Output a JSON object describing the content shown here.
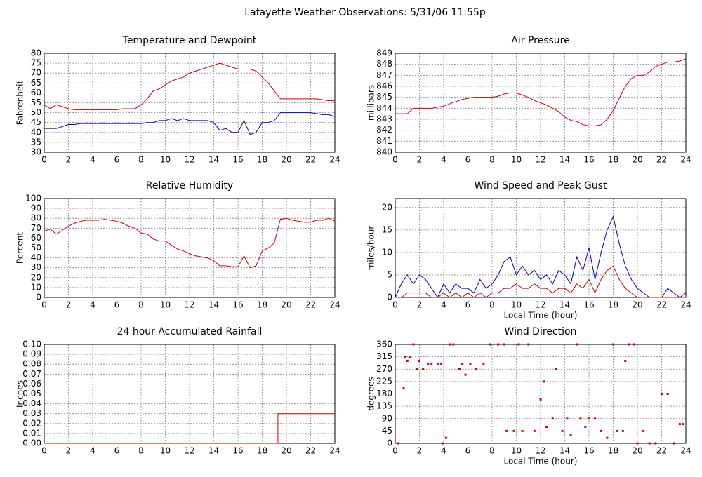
{
  "title": "Lafayette Weather Observations: 5/31/06 11:55p",
  "chart_data": [
    {
      "type": "line",
      "title": "Temperature and Dewpoint",
      "y_label": "Fahrenheit",
      "x": [
        0,
        0.5,
        1,
        1.5,
        2,
        2.5,
        3,
        3.5,
        4,
        4.5,
        5,
        5.5,
        6,
        6.5,
        7,
        7.5,
        8,
        8.5,
        9,
        9.5,
        10,
        10.5,
        11,
        11.5,
        12,
        12.5,
        13,
        13.5,
        14,
        14.5,
        15,
        15.5,
        16,
        16.5,
        17,
        17.5,
        18,
        18.5,
        19,
        19.5,
        20,
        20.5,
        21,
        21.5,
        22,
        22.5,
        23,
        23.5,
        24
      ],
      "series": [
        {
          "color": "#d00000",
          "values": [
            54,
            52,
            54,
            53,
            52,
            51.5,
            51.5,
            51.5,
            51.5,
            51.5,
            51.5,
            51.5,
            51.5,
            52,
            52,
            52,
            54,
            57,
            61,
            62,
            64,
            66,
            67,
            68,
            70,
            71,
            72,
            73,
            74,
            75,
            74,
            73,
            72,
            72,
            72,
            71,
            68,
            65,
            61,
            57,
            57,
            57,
            57,
            57,
            57,
            57,
            56.5,
            56,
            56
          ]
        },
        {
          "color": "#0000c0",
          "values": [
            42,
            42,
            42,
            43,
            44,
            44,
            44.5,
            44.5,
            44.5,
            44.5,
            44.5,
            44.5,
            44.5,
            44.5,
            44.5,
            44.5,
            44.5,
            45,
            45,
            46,
            46,
            47,
            46,
            47,
            46,
            46,
            46,
            46,
            45,
            41,
            42,
            40,
            40,
            46,
            39,
            40,
            45,
            45,
            46,
            50,
            50,
            50,
            50,
            50,
            50,
            49.5,
            49,
            49,
            48
          ]
        }
      ],
      "xlim": [
        0,
        24
      ],
      "xticks": [
        0,
        2,
        4,
        6,
        8,
        10,
        12,
        14,
        16,
        18,
        20,
        22,
        24
      ],
      "ylim": [
        30,
        80
      ],
      "yticks": [
        30,
        35,
        40,
        45,
        50,
        55,
        60,
        65,
        70,
        75,
        80
      ],
      "grid": true
    },
    {
      "type": "line",
      "title": "Air Pressure",
      "y_label": "millibars",
      "x": [
        0,
        0.5,
        1,
        1.5,
        2,
        2.5,
        3,
        3.5,
        4,
        4.5,
        5,
        5.5,
        6,
        6.5,
        7,
        7.5,
        8,
        8.5,
        9,
        9.5,
        10,
        10.5,
        11,
        11.5,
        12,
        12.5,
        13,
        13.5,
        14,
        14.5,
        15,
        15.5,
        16,
        16.5,
        17,
        17.5,
        18,
        18.5,
        19,
        19.5,
        20,
        20.5,
        21,
        21.5,
        22,
        22.5,
        23,
        23.5,
        24
      ],
      "series": [
        {
          "color": "#d00000",
          "values": [
            843.5,
            843.5,
            843.5,
            844,
            844,
            844,
            844,
            844.1,
            844.2,
            844.4,
            844.6,
            844.8,
            844.9,
            845,
            845,
            845,
            845,
            845.1,
            845.3,
            845.4,
            845.4,
            845.2,
            845,
            844.7,
            844.5,
            844.3,
            844,
            843.7,
            843.2,
            842.9,
            842.8,
            842.5,
            842.4,
            842.4,
            842.5,
            843,
            843.8,
            844.9,
            846,
            846.7,
            847,
            847,
            847.3,
            847.8,
            848,
            848.2,
            848.2,
            848.3,
            848.5
          ]
        }
      ],
      "xlim": [
        0,
        24
      ],
      "xticks": [
        0,
        2,
        4,
        6,
        8,
        10,
        12,
        14,
        16,
        18,
        20,
        22,
        24
      ],
      "ylim": [
        840,
        849
      ],
      "yticks": [
        840,
        841,
        842,
        843,
        844,
        845,
        846,
        847,
        848,
        849
      ],
      "grid": true
    },
    {
      "type": "line",
      "title": "Relative Humidity",
      "y_label": "Percent",
      "x": [
        0,
        0.5,
        1,
        1.5,
        2,
        2.5,
        3,
        3.5,
        4,
        4.5,
        5,
        5.5,
        6,
        6.5,
        7,
        7.5,
        8,
        8.5,
        9,
        9.5,
        10,
        10.5,
        11,
        11.5,
        12,
        12.5,
        13,
        13.5,
        14,
        14.5,
        15,
        15.5,
        16,
        16.5,
        17,
        17.5,
        18,
        18.5,
        19,
        19.5,
        20,
        20.5,
        21,
        21.5,
        22,
        22.5,
        23,
        23.5,
        24
      ],
      "series": [
        {
          "color": "#d00000",
          "values": [
            67,
            69,
            64,
            68,
            72,
            75,
            77,
            78,
            78,
            78,
            79,
            78,
            77,
            75,
            72,
            70,
            65,
            64,
            59,
            57,
            57,
            53,
            49,
            47,
            44,
            42,
            41,
            40,
            37,
            32,
            32,
            31,
            31,
            42,
            30,
            32,
            47,
            50,
            55,
            79,
            80,
            78,
            77,
            76,
            76,
            78,
            78,
            80,
            77
          ]
        }
      ],
      "xlim": [
        0,
        24
      ],
      "xticks": [
        0,
        2,
        4,
        6,
        8,
        10,
        12,
        14,
        16,
        18,
        20,
        22,
        24
      ],
      "ylim": [
        0,
        100
      ],
      "yticks": [
        0,
        10,
        20,
        30,
        40,
        50,
        60,
        70,
        80,
        90,
        100
      ],
      "grid": true
    },
    {
      "type": "line",
      "title": "Wind Speed and Peak Gust",
      "y_label": "miles/hour",
      "x_label": "Local Time (hour)",
      "x": [
        0,
        0.5,
        1,
        1.5,
        2,
        2.5,
        3,
        3.5,
        4,
        4.5,
        5,
        5.5,
        6,
        6.5,
        7,
        7.5,
        8,
        8.5,
        9,
        9.5,
        10,
        10.5,
        11,
        11.5,
        12,
        12.5,
        13,
        13.5,
        14,
        14.5,
        15,
        15.5,
        16,
        16.5,
        17,
        17.5,
        18,
        18.5,
        19,
        19.5,
        20,
        20.5,
        21,
        21.5,
        22,
        22.5,
        23,
        23.5,
        24
      ],
      "series": [
        {
          "color": "#0000c0",
          "values": [
            0,
            3,
            5,
            3,
            5,
            4,
            2,
            0,
            3,
            1,
            3,
            2,
            2,
            1,
            4,
            2,
            3,
            5,
            8,
            9,
            5,
            7,
            5,
            6,
            4,
            5,
            3,
            6,
            5,
            3,
            9,
            6,
            11,
            4,
            10,
            15,
            18,
            12,
            7,
            4,
            2,
            1,
            0,
            0,
            0,
            2,
            1,
            0,
            1
          ]
        },
        {
          "color": "#d00000",
          "values": [
            0,
            0,
            1,
            1,
            1,
            1,
            0,
            0,
            1,
            0,
            1,
            0,
            1,
            0,
            1,
            0,
            1,
            1,
            2,
            2,
            3,
            2,
            2,
            3,
            2,
            2,
            1,
            2,
            2,
            1,
            3,
            2,
            4,
            1,
            4,
            6,
            7,
            4,
            2,
            1,
            0,
            0,
            0,
            0,
            0,
            0,
            0,
            0,
            0
          ]
        }
      ],
      "xlim": [
        0,
        24
      ],
      "xticks": [
        0,
        2,
        4,
        6,
        8,
        10,
        12,
        14,
        16,
        18,
        20,
        22,
        24
      ],
      "ylim": [
        0,
        22
      ],
      "yticks": [
        0,
        5,
        10,
        15,
        20
      ],
      "grid": true
    },
    {
      "type": "line",
      "title": "24 hour Accumulated Rainfall",
      "y_label": "Inches",
      "x": [
        0,
        19.3,
        19.3,
        24
      ],
      "series": [
        {
          "color": "#d00000",
          "values": [
            0,
            0,
            0.03,
            0.03
          ]
        }
      ],
      "xlim": [
        0,
        24
      ],
      "xticks": [
        0,
        2,
        4,
        6,
        8,
        10,
        12,
        14,
        16,
        18,
        20,
        22,
        24
      ],
      "ylim": [
        0,
        0.1
      ],
      "yticks": [
        {
          "value": 0,
          "label": "0.00"
        },
        {
          "value": 0.01,
          "label": "0.01"
        },
        {
          "value": 0.02,
          "label": "0.02"
        },
        {
          "value": 0.03,
          "label": "0.03"
        },
        {
          "value": 0.04,
          "label": "0.04"
        },
        {
          "value": 0.05,
          "label": "0.05"
        },
        {
          "value": 0.06,
          "label": "0.06"
        },
        {
          "value": 0.07,
          "label": "0.07"
        },
        {
          "value": 0.08,
          "label": "0.08"
        },
        {
          "value": 0.09,
          "label": "0.09"
        },
        {
          "value": 0.1,
          "label": "0.10"
        }
      ],
      "grid": true
    },
    {
      "type": "scatter",
      "title": "Wind Direction",
      "y_label": "degrees",
      "x_label": "Local Time (hour)",
      "x": [
        0.2,
        0.7,
        0.8,
        1,
        1.2,
        1.5,
        1.8,
        2,
        2.3,
        2.7,
        3,
        3.5,
        3.8,
        3.9,
        4.2,
        4.5,
        4.8,
        5.3,
        5.5,
        5.8,
        6.2,
        6.7,
        7.3,
        7.8,
        8.5,
        9,
        9.2,
        9.8,
        10.2,
        10.5,
        11,
        11.5,
        12,
        12.3,
        12.5,
        13,
        13.3,
        13.8,
        14.2,
        14.5,
        15,
        15.3,
        15.7,
        16,
        16.5,
        17,
        17.5,
        18,
        18.3,
        18.8,
        19,
        19.3,
        19.7,
        20,
        20.5,
        21,
        21.5,
        22,
        22.5,
        23,
        23.5,
        23.8
      ],
      "series": [
        {
          "color": "#d00000",
          "values": [
            0,
            200,
            315,
            300,
            315,
            360,
            270,
            300,
            270,
            290,
            290,
            290,
            290,
            0,
            20,
            360,
            360,
            270,
            290,
            250,
            290,
            270,
            290,
            360,
            360,
            360,
            45,
            45,
            360,
            45,
            360,
            45,
            160,
            225,
            60,
            90,
            270,
            45,
            90,
            30,
            360,
            90,
            60,
            90,
            90,
            45,
            20,
            360,
            45,
            45,
            300,
            360,
            360,
            0,
            45,
            0,
            0,
            180,
            180,
            0,
            70,
            70
          ]
        }
      ],
      "xlim": [
        0,
        24
      ],
      "xticks": [
        0,
        2,
        4,
        6,
        8,
        10,
        12,
        14,
        16,
        18,
        20,
        22,
        24
      ],
      "ylim": [
        0,
        360
      ],
      "yticks": [
        0,
        45,
        90,
        135,
        180,
        225,
        270,
        315,
        360
      ],
      "grid": true
    }
  ]
}
